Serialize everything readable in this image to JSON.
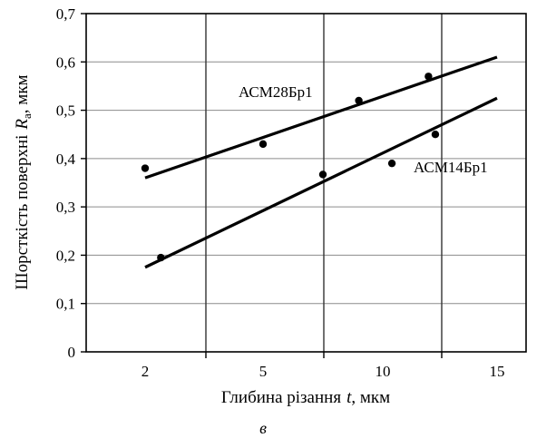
{
  "chart_data": {
    "type": "scatter",
    "xlabel": "Глибина різання",
    "xlabel_var": "t",
    "xlabel_unit": ", мкм",
    "ylabel": "Шорсткість поверхні",
    "ylabel_var": "R",
    "ylabel_sub": "a",
    "ylabel_unit": ", мкм",
    "panel_label": "в",
    "xticks": [
      "2",
      "5",
      "10",
      "15"
    ],
    "yticks": [
      "0",
      "0,1",
      "0,2",
      "0,3",
      "0,4",
      "0,5",
      "0,6",
      "0,7"
    ],
    "ylim": [
      0,
      0.7
    ],
    "grid": true,
    "series": [
      {
        "name": "АСМ28Бр1",
        "points": [
          [
            2,
            0.38
          ],
          [
            5,
            0.43
          ],
          [
            9,
            0.52
          ],
          [
            12,
            0.57
          ],
          [
            12.3,
            0.45
          ]
        ],
        "fit": [
          [
            2,
            0.36
          ],
          [
            15,
            0.61
          ]
        ]
      },
      {
        "name": "АСМ14Бр1",
        "points": [
          [
            2.4,
            0.195
          ],
          [
            7.5,
            0.367
          ],
          [
            10.4,
            0.39
          ]
        ],
        "fit": [
          [
            2,
            0.175
          ],
          [
            15,
            0.525
          ]
        ]
      }
    ]
  }
}
